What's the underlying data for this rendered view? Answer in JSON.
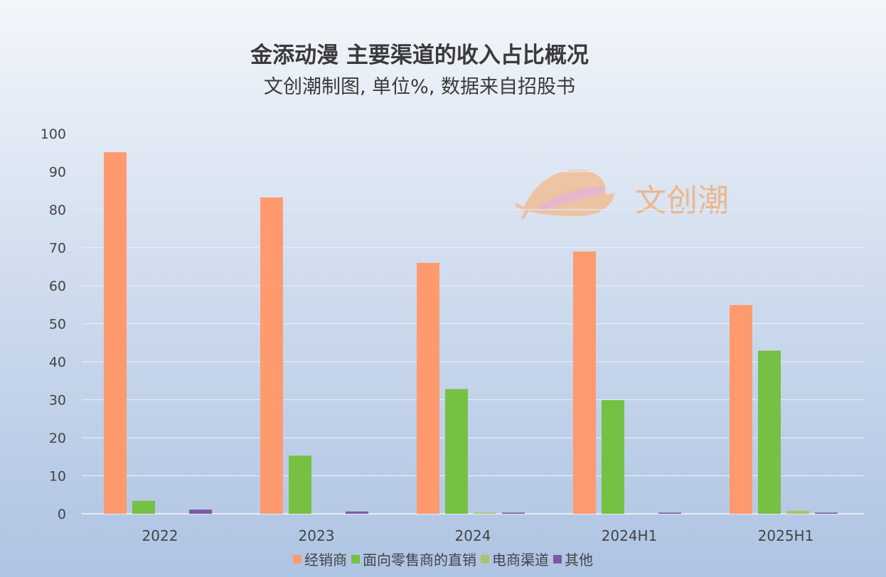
{
  "chart_data": {
    "type": "bar",
    "title": "金添动漫 主要渠道的收入占比概况",
    "subtitle": "文创潮制图, 单位%, 数据来自招股书",
    "xlabel": "",
    "ylabel": "",
    "ylim": [
      0,
      100
    ],
    "yticks": [
      "0",
      "10",
      "20",
      "30",
      "40",
      "50",
      "60",
      "70",
      "80",
      "90",
      "100"
    ],
    "grid": true,
    "legend_position": "bottom",
    "categories": [
      "2022",
      "2023",
      "2024",
      "2024H1",
      "2025H1"
    ],
    "series": [
      {
        "name": "经销商",
        "color": "#fe9a6e",
        "values": [
          95.1,
          83.2,
          66.0,
          69.0,
          54.9
        ]
      },
      {
        "name": "面向零售商的直销",
        "color": "#76c043",
        "values": [
          3.4,
          15.3,
          32.8,
          29.9,
          42.9
        ]
      },
      {
        "name": "电商渠道",
        "color": "#a9c46a",
        "values": [
          0,
          0,
          0.3,
          0,
          0.8
        ]
      },
      {
        "name": "其他",
        "color": "#7b59a8",
        "values": [
          1.1,
          0.6,
          0.3,
          0.3,
          0.3
        ]
      }
    ]
  },
  "watermark": {
    "text": "文创潮"
  }
}
